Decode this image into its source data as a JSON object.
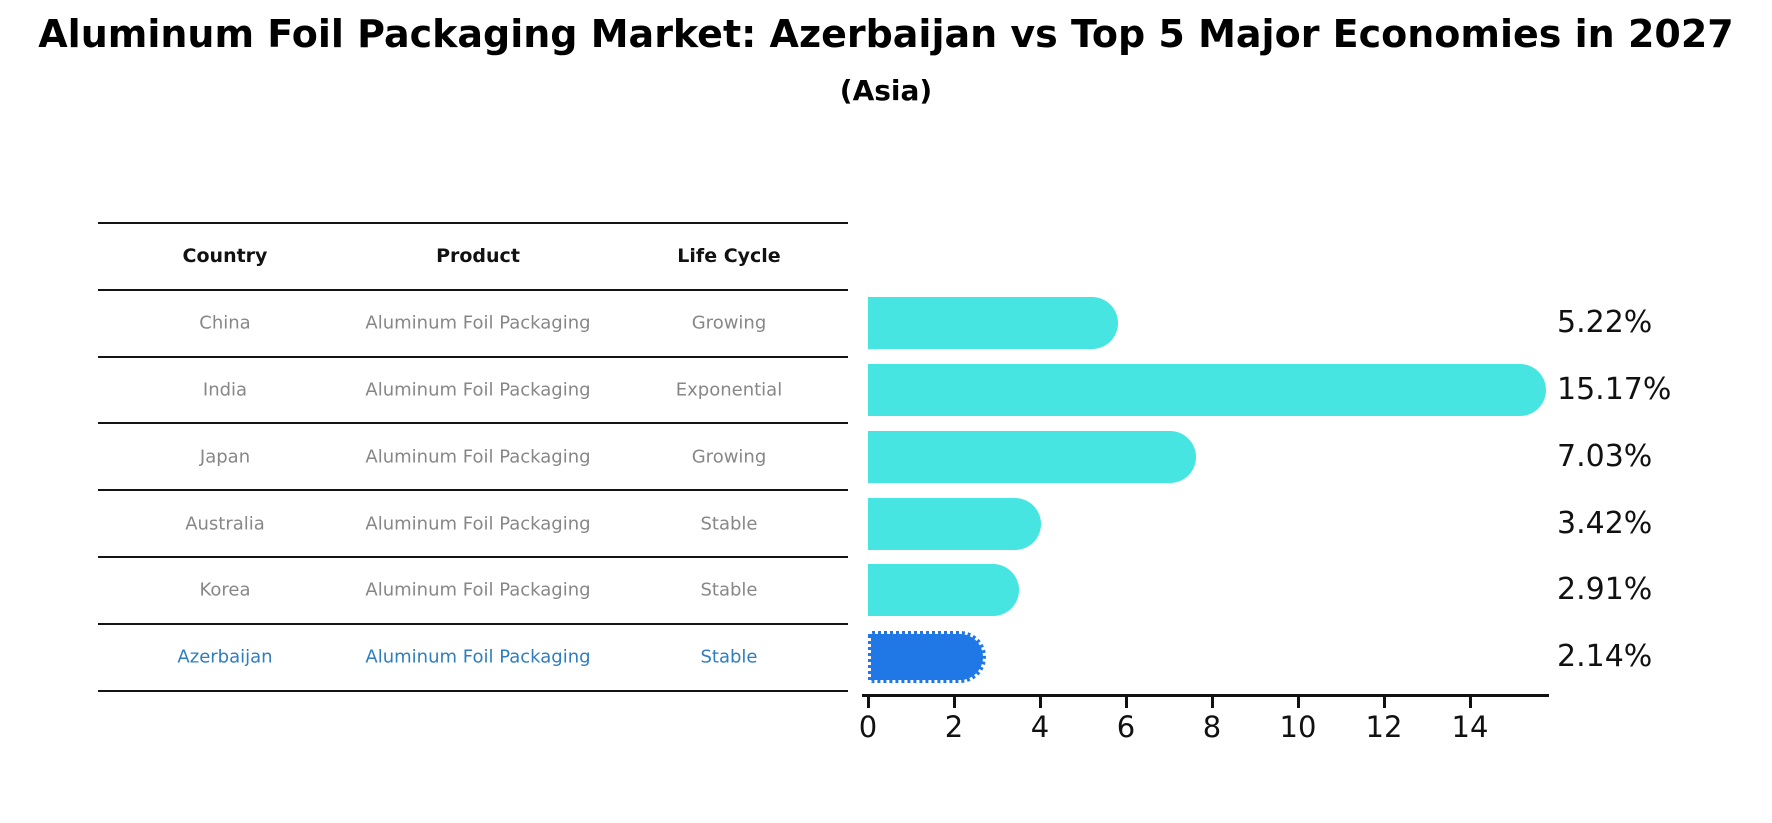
{
  "title": "Aluminum Foil Packaging Market: Azerbaijan vs Top 5 Major Economies in 2027",
  "subtitle": "(Asia)",
  "table": {
    "headers": [
      "Country",
      "Product",
      "Life Cycle"
    ],
    "rows": [
      {
        "country": "China",
        "product": "Aluminum Foil Packaging",
        "life_cycle": "Growing",
        "highlight": false
      },
      {
        "country": "India",
        "product": "Aluminum Foil Packaging",
        "life_cycle": "Exponential",
        "highlight": false
      },
      {
        "country": "Japan",
        "product": "Aluminum Foil Packaging",
        "life_cycle": "Growing",
        "highlight": false
      },
      {
        "country": "Australia",
        "product": "Aluminum Foil Packaging",
        "life_cycle": "Stable",
        "highlight": false
      },
      {
        "country": "Korea",
        "product": "Aluminum Foil Packaging",
        "life_cycle": "Stable",
        "highlight": false
      },
      {
        "country": "Azerbaijan",
        "product": "Aluminum Foil Packaging",
        "life_cycle": "Stable",
        "highlight": true
      }
    ]
  },
  "chart_data": {
    "type": "bar",
    "orientation": "horizontal",
    "title": "Aluminum Foil Packaging Market: Azerbaijan vs Top 5 Major Economies in 2027",
    "subtitle": "(Asia)",
    "categories": [
      "China",
      "India",
      "Japan",
      "Australia",
      "Korea",
      "Azerbaijan"
    ],
    "values": [
      5.22,
      15.17,
      7.03,
      3.42,
      2.91,
      2.14
    ],
    "value_labels": [
      "5.22%",
      "15.17%",
      "7.03%",
      "3.42%",
      "2.91%",
      "2.14%"
    ],
    "unit": "%",
    "xlabel": "",
    "ylabel": "",
    "xticks": [
      0,
      2,
      4,
      6,
      8,
      10,
      12,
      14
    ],
    "xlim": [
      0,
      15.8
    ],
    "grid": false,
    "legend": false,
    "highlight_index": 5
  },
  "colors": {
    "bar": "#46e5e1",
    "highlight_bar": "#2078e6",
    "highlight_text": "#2e7dbe",
    "text": "#111111",
    "muted_text": "#878787",
    "background": "#ffffff"
  }
}
